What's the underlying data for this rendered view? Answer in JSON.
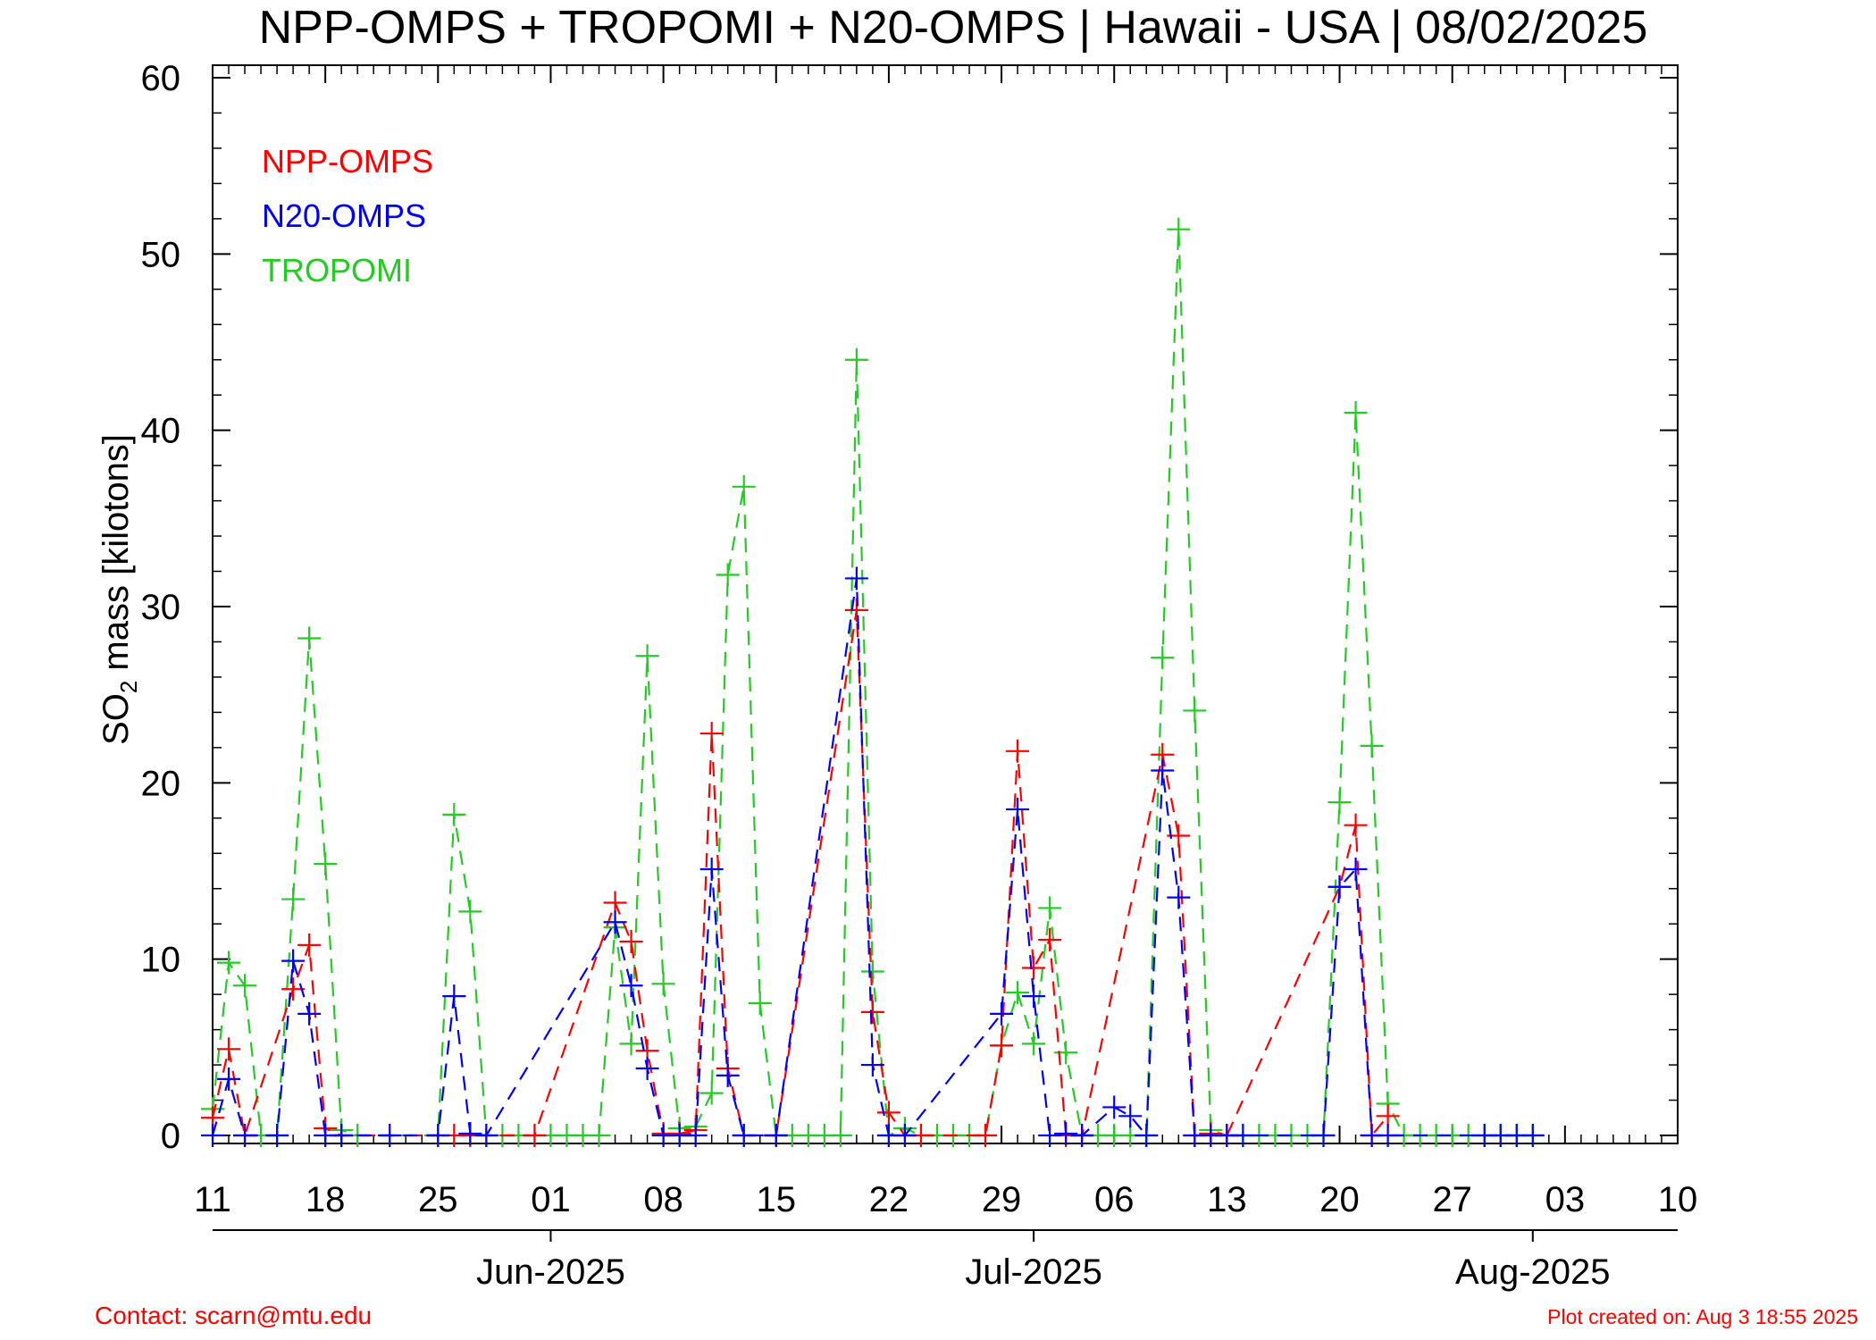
{
  "chart_data": {
    "type": "line",
    "title": "NPP-OMPS + TROPOMI + N20-OMPS | Hawaii - USA | 08/02/2025",
    "ylabel_parts": [
      "SO",
      "2",
      " mass [kilotons]"
    ],
    "ylim": [
      0,
      60
    ],
    "yticks": [
      0,
      10,
      20,
      30,
      40,
      50,
      60
    ],
    "xlim_day": [
      0,
      91
    ],
    "x_start_date": "2025-05-11",
    "xticks": [
      {
        "day": 0,
        "label": "11"
      },
      {
        "day": 7,
        "label": "18"
      },
      {
        "day": 14,
        "label": "25"
      },
      {
        "day": 21,
        "label": "01"
      },
      {
        "day": 28,
        "label": "08"
      },
      {
        "day": 35,
        "label": "15"
      },
      {
        "day": 42,
        "label": "22"
      },
      {
        "day": 49,
        "label": "29"
      },
      {
        "day": 56,
        "label": "06"
      },
      {
        "day": 63,
        "label": "13"
      },
      {
        "day": 70,
        "label": "20"
      },
      {
        "day": 77,
        "label": "27"
      },
      {
        "day": 84,
        "label": "03"
      },
      {
        "day": 91,
        "label": "10"
      }
    ],
    "month_ticks": [
      {
        "day": 21,
        "label": "Jun-2025"
      },
      {
        "day": 51,
        "label": "Jul-2025"
      },
      {
        "day": 82,
        "label": "Aug-2025"
      }
    ],
    "grid": false,
    "legend_position": "top-left",
    "series": [
      {
        "name": "NPP-OMPS",
        "color": "#ff0000",
        "marker": "plus",
        "points": [
          [
            0,
            1
          ],
          [
            1,
            4.9
          ],
          [
            2,
            0
          ],
          [
            5,
            8.3
          ],
          [
            6,
            10.8
          ],
          [
            7,
            0.4
          ],
          [
            8,
            0
          ],
          [
            15,
            0
          ],
          [
            16,
            0
          ],
          [
            20,
            0
          ],
          [
            25,
            13.2
          ],
          [
            26,
            11
          ],
          [
            27,
            4.8
          ],
          [
            28,
            0.1
          ],
          [
            29,
            0.1
          ],
          [
            30,
            0.3
          ],
          [
            31,
            22.8
          ],
          [
            32,
            3.8
          ],
          [
            33,
            0
          ],
          [
            35,
            0
          ],
          [
            40,
            29.8
          ],
          [
            41,
            7
          ],
          [
            42,
            1.3
          ],
          [
            43,
            0
          ],
          [
            44,
            0
          ],
          [
            48,
            0
          ],
          [
            49,
            5.1
          ],
          [
            50,
            21.8
          ],
          [
            51,
            9.5
          ],
          [
            52,
            11.1
          ],
          [
            53,
            0
          ],
          [
            54,
            0
          ],
          [
            59,
            21.6
          ],
          [
            60,
            17
          ],
          [
            61,
            0
          ],
          [
            62,
            0.1
          ],
          [
            63,
            0
          ],
          [
            70,
            14.1
          ],
          [
            71,
            17.6
          ],
          [
            72,
            0
          ],
          [
            73,
            1.1
          ]
        ]
      },
      {
        "name": "N20-OMPS",
        "color": "#0000ff",
        "marker": "plus",
        "points": [
          [
            0,
            0
          ],
          [
            1,
            3.2
          ],
          [
            2,
            0
          ],
          [
            4,
            0
          ],
          [
            5,
            9.9
          ],
          [
            6,
            6.9
          ],
          [
            7,
            0
          ],
          [
            8,
            0
          ],
          [
            11,
            0
          ],
          [
            14,
            0
          ],
          [
            15,
            7.9
          ],
          [
            16,
            0.1
          ],
          [
            17,
            0
          ],
          [
            25,
            12.1
          ],
          [
            26,
            8.5
          ],
          [
            27,
            3.8
          ],
          [
            28,
            0
          ],
          [
            29,
            0
          ],
          [
            30,
            0
          ],
          [
            31,
            15.1
          ],
          [
            32,
            3.4
          ],
          [
            33,
            0
          ],
          [
            35,
            0
          ],
          [
            40,
            31.6
          ],
          [
            41,
            4
          ],
          [
            42,
            0
          ],
          [
            43,
            0
          ],
          [
            49,
            6.9
          ],
          [
            50,
            18.5
          ],
          [
            51,
            7.9
          ],
          [
            52,
            0
          ],
          [
            53,
            0.1
          ],
          [
            54,
            0
          ],
          [
            56,
            1.6
          ],
          [
            57,
            1.1
          ],
          [
            58,
            0
          ],
          [
            59,
            20.7
          ],
          [
            60,
            13.5
          ],
          [
            61,
            0
          ],
          [
            62,
            0
          ],
          [
            63,
            0
          ],
          [
            64,
            0
          ],
          [
            69,
            0
          ],
          [
            70,
            14.1
          ],
          [
            71,
            15.1
          ],
          [
            72,
            0
          ],
          [
            73,
            0
          ],
          [
            79,
            0
          ],
          [
            80,
            0
          ],
          [
            81,
            0
          ],
          [
            82,
            0
          ]
        ]
      },
      {
        "name": "TROPOMI",
        "color": "#22cc22",
        "marker": "plus",
        "points": [
          [
            0,
            1.5
          ],
          [
            1,
            9.8
          ],
          [
            2,
            8.5
          ],
          [
            3,
            0
          ],
          [
            4,
            0
          ],
          [
            5,
            13.4
          ],
          [
            6,
            28.2
          ],
          [
            7,
            15.4
          ],
          [
            8,
            0.3
          ],
          [
            9,
            0
          ],
          [
            14,
            0
          ],
          [
            15,
            18.2
          ],
          [
            16,
            12.7
          ],
          [
            17,
            0
          ],
          [
            18,
            0
          ],
          [
            19,
            0
          ],
          [
            20,
            0
          ],
          [
            21,
            0
          ],
          [
            22,
            0
          ],
          [
            23,
            0
          ],
          [
            24,
            0
          ],
          [
            25,
            11.8
          ],
          [
            26,
            5.2
          ],
          [
            27,
            27.2
          ],
          [
            28,
            8.6
          ],
          [
            29,
            0.4
          ],
          [
            30,
            0.5
          ],
          [
            31,
            2.4
          ],
          [
            32,
            31.8
          ],
          [
            33,
            36.8
          ],
          [
            34,
            7.5
          ],
          [
            35,
            0
          ],
          [
            36,
            0
          ],
          [
            37,
            0
          ],
          [
            38,
            0
          ],
          [
            39,
            0
          ],
          [
            40,
            44
          ],
          [
            41,
            9.3
          ],
          [
            42,
            0
          ],
          [
            43,
            0.4
          ],
          [
            44,
            0
          ],
          [
            45,
            0
          ],
          [
            46,
            0
          ],
          [
            47,
            0
          ],
          [
            48,
            0
          ],
          [
            49,
            5.1
          ],
          [
            50,
            8.1
          ],
          [
            51,
            5.2
          ],
          [
            52,
            12.9
          ],
          [
            53,
            4.7
          ],
          [
            54,
            0
          ],
          [
            55,
            0
          ],
          [
            56,
            0
          ],
          [
            57,
            0
          ],
          [
            58,
            0
          ],
          [
            59,
            27.1
          ],
          [
            60,
            51.4
          ],
          [
            61,
            24.1
          ],
          [
            62,
            0.3
          ],
          [
            63,
            0
          ],
          [
            64,
            0
          ],
          [
            65,
            0
          ],
          [
            66,
            0
          ],
          [
            67,
            0
          ],
          [
            68,
            0
          ],
          [
            69,
            0
          ],
          [
            70,
            18.9
          ],
          [
            71,
            41
          ],
          [
            72,
            22.1
          ],
          [
            73,
            1.8
          ],
          [
            74,
            0
          ],
          [
            75,
            0
          ],
          [
            76,
            0
          ],
          [
            77,
            0
          ],
          [
            78,
            0
          ],
          [
            79,
            0
          ],
          [
            80,
            0
          ],
          [
            81,
            0
          ],
          [
            82,
            0
          ]
        ]
      }
    ]
  },
  "footer": {
    "contact": "Contact: scarn@mtu.edu",
    "created": "Plot created on: Aug  3 18:55 2025"
  }
}
